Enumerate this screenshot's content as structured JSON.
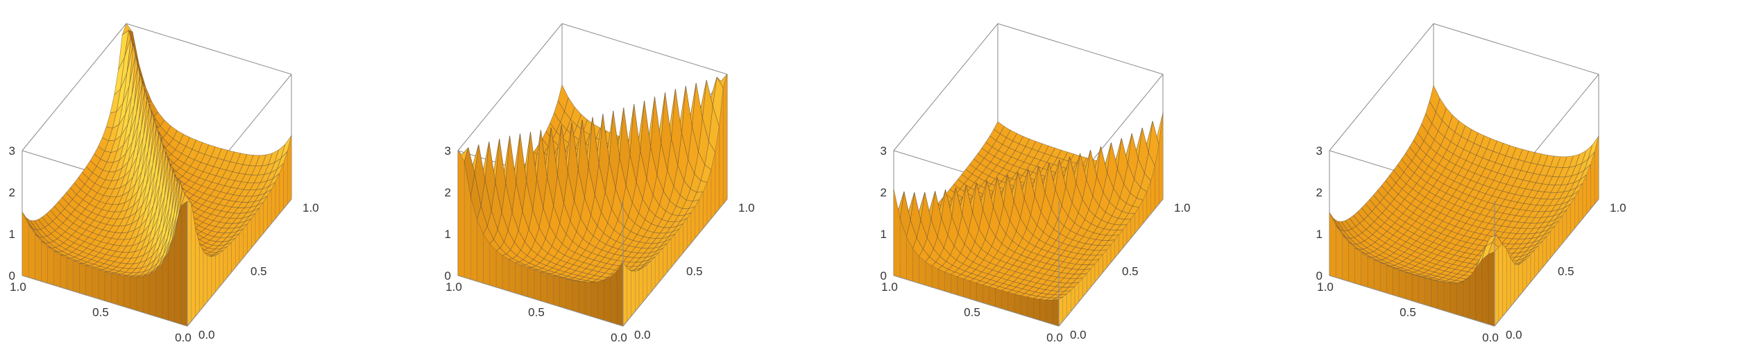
{
  "figure": {
    "colors": {
      "surface_base": "#f2a019",
      "surface_light": "#ffd840",
      "surface_dark": "#6e3a07",
      "mesh": "#5b4a3a",
      "cap": "#c6c6c6",
      "box": "#8a8a8a"
    }
  },
  "chart_data": [
    {
      "type": "surface3d",
      "panel": 1,
      "description_of_shape": "high rims on the four sides, cusps rising at the corners, ridge running along the main diagonal, low in the middle",
      "x_axis": {
        "ticks": [
          "0.0",
          "0.5",
          "1.0"
        ],
        "range": [
          0,
          1
        ]
      },
      "y_axis": {
        "ticks": [
          "0.0",
          "0.5",
          "1.0"
        ],
        "range": [
          0,
          1
        ]
      },
      "z_axis": {
        "ticks": [
          "0",
          "1",
          "2",
          "3"
        ],
        "range": [
          0,
          3
        ]
      },
      "features": {
        "corner_cusps": true,
        "diagonal_ridge": "main",
        "middle_hump": false
      }
    },
    {
      "type": "surface3d",
      "panel": 2,
      "x_axis": {
        "ticks": [
          "0.0",
          "0.5",
          "1.0"
        ],
        "range": [
          0,
          1
        ]
      },
      "y_axis": {
        "ticks": [
          "0.0",
          "0.5",
          "1.0"
        ],
        "range": [
          0,
          1
        ]
      },
      "z_axis": {
        "ticks": [
          "0",
          "1",
          "2",
          "3"
        ],
        "range": [
          0,
          3
        ]
      },
      "features": {
        "corner_cusps": true,
        "diagonal_ridge": "anti",
        "middle_hump": false
      }
    },
    {
      "type": "surface3d",
      "panel": 3,
      "x_axis": {
        "ticks": [
          "0.0",
          "0.5",
          "1.0"
        ],
        "range": [
          0,
          1
        ]
      },
      "y_axis": {
        "ticks": [
          "0.0",
          "0.5",
          "1.0"
        ],
        "range": [
          0,
          1
        ]
      },
      "z_axis": {
        "ticks": [
          "0",
          "1",
          "2",
          "3"
        ],
        "range": [
          0,
          3
        ]
      },
      "features": {
        "corner_cusps": false,
        "diagonal_ridge": "anti",
        "middle_hump": false
      }
    },
    {
      "type": "surface3d",
      "panel": 4,
      "x_axis": {
        "ticks": [
          "0.0",
          "0.5",
          "1.0"
        ],
        "range": [
          0,
          1
        ]
      },
      "y_axis": {
        "ticks": [
          "0.0",
          "0.5",
          "1.0"
        ],
        "range": [
          0,
          1
        ]
      },
      "z_axis": {
        "ticks": [
          "0",
          "1",
          "2",
          "3"
        ],
        "range": [
          0,
          3
        ]
      },
      "features": {
        "corner_cusps": true,
        "diagonal_ridge": "none",
        "middle_hump": true
      }
    }
  ]
}
